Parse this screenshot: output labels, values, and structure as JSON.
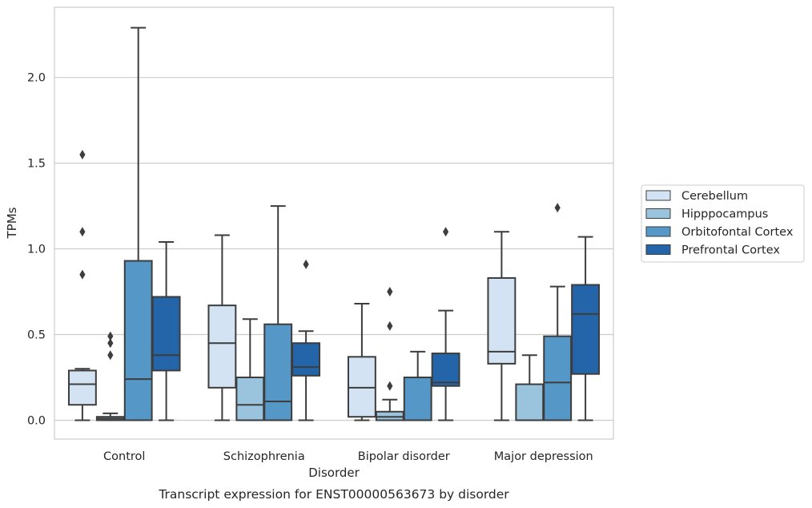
{
  "caption": "Transcript expression for ENST00000563673 by disorder",
  "chart_data": {
    "type": "boxplot",
    "xlabel": "Disorder",
    "ylabel": "TPMs",
    "ylim": [
      -0.11,
      2.41
    ],
    "yticks": [
      0.0,
      0.5,
      1.0,
      1.5,
      2.0
    ],
    "ytick_labels": [
      "0.0",
      "0.5",
      "1.0",
      "1.5",
      "2.0"
    ],
    "grid": "horizontal",
    "legend_position": "right",
    "categories": [
      "Control",
      "Schizophrenia",
      "Bipolar disorder",
      "Major depression"
    ],
    "series": [
      {
        "name": "Cerebellum",
        "color": "#d3e3f3",
        "boxes": [
          {
            "whislo": 0.0,
            "q1": 0.09,
            "med": 0.21,
            "q3": 0.29,
            "whishi": 0.3,
            "fliers": [
              0.85,
              1.1,
              1.55
            ]
          },
          {
            "whislo": 0.0,
            "q1": 0.19,
            "med": 0.45,
            "q3": 0.67,
            "whishi": 1.08,
            "fliers": []
          },
          {
            "whislo": 0.0,
            "q1": 0.02,
            "med": 0.19,
            "q3": 0.37,
            "whishi": 0.68,
            "fliers": []
          },
          {
            "whislo": 0.0,
            "q1": 0.33,
            "med": 0.4,
            "q3": 0.83,
            "whishi": 1.1,
            "fliers": []
          }
        ]
      },
      {
        "name": "Hipppocampus",
        "color": "#9ac3de",
        "boxes": [
          {
            "whislo": 0.0,
            "q1": 0.0,
            "med": 0.01,
            "q3": 0.02,
            "whishi": 0.04,
            "fliers": [
              0.38,
              0.45,
              0.49
            ]
          },
          {
            "whislo": 0.0,
            "q1": 0.0,
            "med": 0.09,
            "q3": 0.25,
            "whishi": 0.59,
            "fliers": []
          },
          {
            "whislo": 0.0,
            "q1": 0.0,
            "med": 0.02,
            "q3": 0.05,
            "whishi": 0.12,
            "fliers": [
              0.2,
              0.55,
              0.75
            ]
          },
          {
            "whislo": 0.0,
            "q1": 0.0,
            "med": 0.0,
            "q3": 0.21,
            "whishi": 0.38,
            "fliers": []
          }
        ]
      },
      {
        "name": "Orbitofontal Cortex",
        "color": "#5597c6",
        "boxes": [
          {
            "whislo": 0.0,
            "q1": 0.0,
            "med": 0.24,
            "q3": 0.93,
            "whishi": 2.29,
            "fliers": []
          },
          {
            "whislo": 0.0,
            "q1": 0.0,
            "med": 0.11,
            "q3": 0.56,
            "whishi": 1.25,
            "fliers": []
          },
          {
            "whislo": 0.0,
            "q1": 0.0,
            "med": 0.0,
            "q3": 0.25,
            "whishi": 0.4,
            "fliers": []
          },
          {
            "whislo": 0.0,
            "q1": 0.0,
            "med": 0.22,
            "q3": 0.49,
            "whishi": 0.78,
            "fliers": [
              1.24
            ]
          }
        ]
      },
      {
        "name": "Prefrontal Cortex",
        "color": "#2464a8",
        "boxes": [
          {
            "whislo": 0.0,
            "q1": 0.29,
            "med": 0.38,
            "q3": 0.72,
            "whishi": 1.04,
            "fliers": []
          },
          {
            "whislo": 0.0,
            "q1": 0.26,
            "med": 0.31,
            "q3": 0.45,
            "whishi": 0.52,
            "fliers": [
              0.91
            ]
          },
          {
            "whislo": 0.0,
            "q1": 0.2,
            "med": 0.22,
            "q3": 0.39,
            "whishi": 0.64,
            "fliers": [
              1.1
            ]
          },
          {
            "whislo": 0.0,
            "q1": 0.27,
            "med": 0.62,
            "q3": 0.79,
            "whishi": 1.07,
            "fliers": []
          }
        ]
      }
    ]
  }
}
